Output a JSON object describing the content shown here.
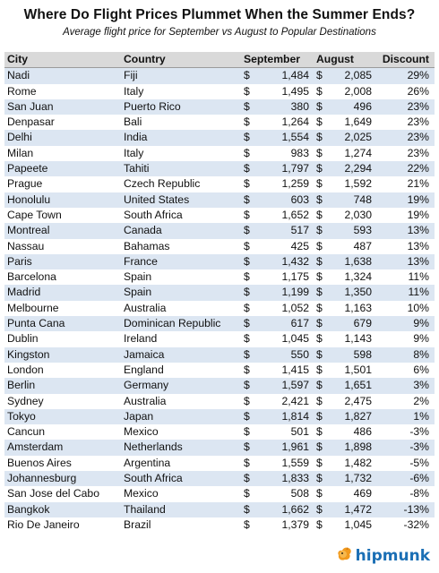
{
  "header": {
    "title": "Where Do Flight Prices Plummet When the Summer Ends?",
    "subtitle": "Average flight price for September vs August to Popular Destinations"
  },
  "logo": {
    "text": "hipmunk",
    "color": "#1b6fb5",
    "icon": "chipmunk-logo-icon"
  },
  "colors": {
    "header_bg": "#d9d9d9",
    "row_alt_bg": "#dce6f2"
  },
  "chart_data": {
    "type": "table",
    "title": "Where Do Flight Prices Plummet When the Summer Ends?",
    "subtitle": "Average flight price for September vs August to Popular Destinations",
    "columns": [
      "City",
      "Country",
      "September",
      "August",
      "Discount"
    ],
    "rows": [
      [
        "Nadi",
        "Fiji",
        "1,484",
        "2,085",
        "29%"
      ],
      [
        "Rome",
        "Italy",
        "1,495",
        "2,008",
        "26%"
      ],
      [
        "San Juan",
        "Puerto Rico",
        "380",
        "496",
        "23%"
      ],
      [
        "Denpasar",
        "Bali",
        "1,264",
        "1,649",
        "23%"
      ],
      [
        "Delhi",
        "India",
        "1,554",
        "2,025",
        "23%"
      ],
      [
        "Milan",
        "Italy",
        "983",
        "1,274",
        "23%"
      ],
      [
        "Papeete",
        "Tahiti",
        "1,797",
        "2,294",
        "22%"
      ],
      [
        "Prague",
        "Czech Republic",
        "1,259",
        "1,592",
        "21%"
      ],
      [
        "Honolulu",
        "United States",
        "603",
        "748",
        "19%"
      ],
      [
        "Cape Town",
        "South Africa",
        "1,652",
        "2,030",
        "19%"
      ],
      [
        "Montreal",
        "Canada",
        "517",
        "593",
        "13%"
      ],
      [
        "Nassau",
        "Bahamas",
        "425",
        "487",
        "13%"
      ],
      [
        "Paris",
        "France",
        "1,432",
        "1,638",
        "13%"
      ],
      [
        "Barcelona",
        "Spain",
        "1,175",
        "1,324",
        "11%"
      ],
      [
        "Madrid",
        "Spain",
        "1,199",
        "1,350",
        "11%"
      ],
      [
        "Melbourne",
        "Australia",
        "1,052",
        "1,163",
        "10%"
      ],
      [
        "Punta Cana",
        "Dominican Republic",
        "617",
        "679",
        "9%"
      ],
      [
        "Dublin",
        "Ireland",
        "1,045",
        "1,143",
        "9%"
      ],
      [
        "Kingston",
        "Jamaica",
        "550",
        "598",
        "8%"
      ],
      [
        "London",
        "England",
        "1,415",
        "1,501",
        "6%"
      ],
      [
        "Berlin",
        "Germany",
        "1,597",
        "1,651",
        "3%"
      ],
      [
        "Sydney",
        "Australia",
        "2,421",
        "2,475",
        "2%"
      ],
      [
        "Tokyo",
        "Japan",
        "1,814",
        "1,827",
        "1%"
      ],
      [
        "Cancun",
        "Mexico",
        "501",
        "486",
        "-3%"
      ],
      [
        "Amsterdam",
        "Netherlands",
        "1,961",
        "1,898",
        "-3%"
      ],
      [
        "Buenos Aires",
        "Argentina",
        "1,559",
        "1,482",
        "-5%"
      ],
      [
        "Johannesburg",
        "South Africa",
        "1,833",
        "1,732",
        "-6%"
      ],
      [
        "San Jose del Cabo",
        "Mexico",
        "508",
        "469",
        "-8%"
      ],
      [
        "Bangkok",
        "Thailand",
        "1,662",
        "1,472",
        "-13%"
      ],
      [
        "Rio De Janeiro",
        "Brazil",
        "1,379",
        "1,045",
        "-32%"
      ]
    ],
    "currency_symbol": "$"
  }
}
